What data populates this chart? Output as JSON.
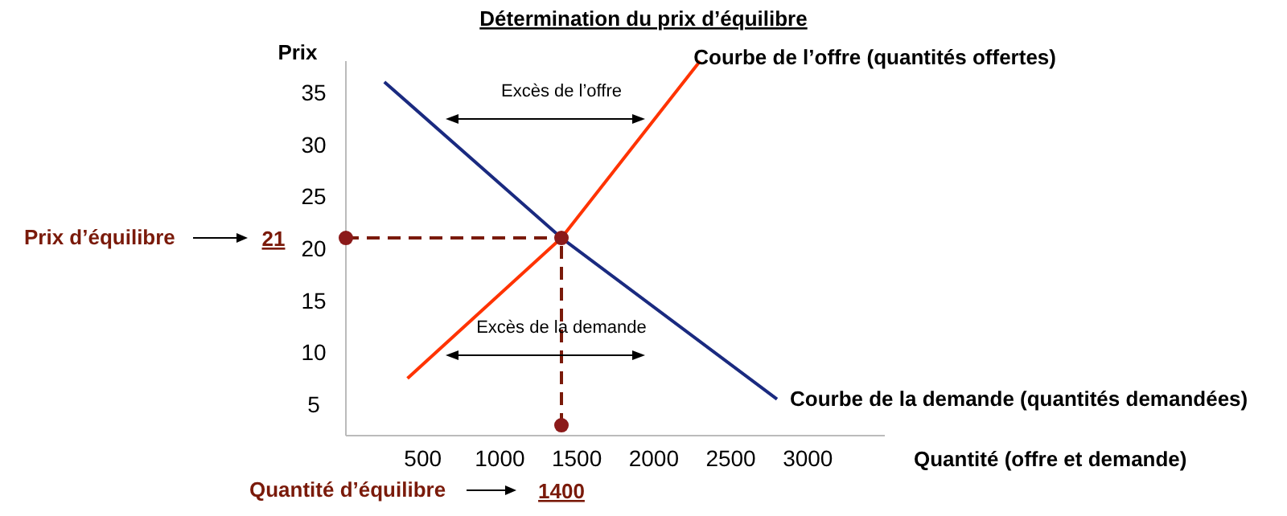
{
  "chart_data": {
    "type": "line",
    "title": "Détermination du prix d’équilibre",
    "xlabel": "Quantité (offre et demande)",
    "ylabel": "Prix",
    "xlim": [
      0,
      3500
    ],
    "xticks": [
      500,
      1000,
      1500,
      2000,
      2500,
      3000
    ],
    "ylim": [
      2,
      38
    ],
    "yticks": [
      5,
      10,
      15,
      20,
      25,
      30,
      35
    ],
    "grid": false,
    "marker": "none",
    "line_style": "solid",
    "series": [
      {
        "name": "Courbe de l’offre  (quantités offertes)",
        "color": "#ff3300",
        "x": [
          400,
          1400,
          2300
        ],
        "values": [
          7.5,
          21,
          38
        ]
      },
      {
        "name": "Courbe de la demande (quantités demandées)",
        "color": "#1a2a80",
        "x": [
          250,
          1400,
          2800
        ],
        "values": [
          36,
          21,
          5.5
        ]
      },
      {
        "type": "scatter",
        "color": "#8b1a1a",
        "marker": "circle",
        "x": [
          0,
          1400,
          1400
        ],
        "values": [
          21,
          21,
          3
        ]
      }
    ],
    "ref_lines": [
      {
        "axis": "y",
        "value": 21,
        "label": "Prix d’équilibre",
        "color": "#7a1a0a",
        "line_style": "dashed"
      },
      {
        "axis": "x",
        "value": 1400,
        "label": "Quantité d’équilibre",
        "color": "#7a1a0a",
        "line_style": "dashed"
      }
    ],
    "annotations": [
      "Excès de l’offre",
      "Excès de la demande",
      "21",
      "1400"
    ]
  }
}
